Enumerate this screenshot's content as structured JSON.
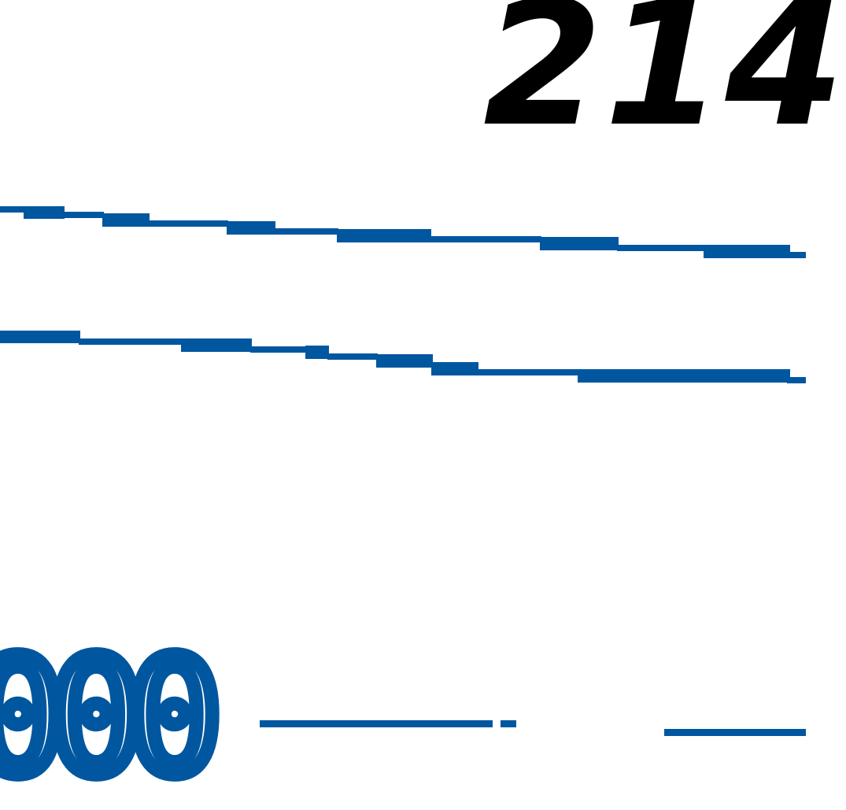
{
  "document": {
    "stamp_number": "214",
    "printed_amount": "000",
    "colors": {
      "stamp_ink": "#000000",
      "printed_ink": "#0057a0",
      "background": "#ffffff"
    }
  }
}
